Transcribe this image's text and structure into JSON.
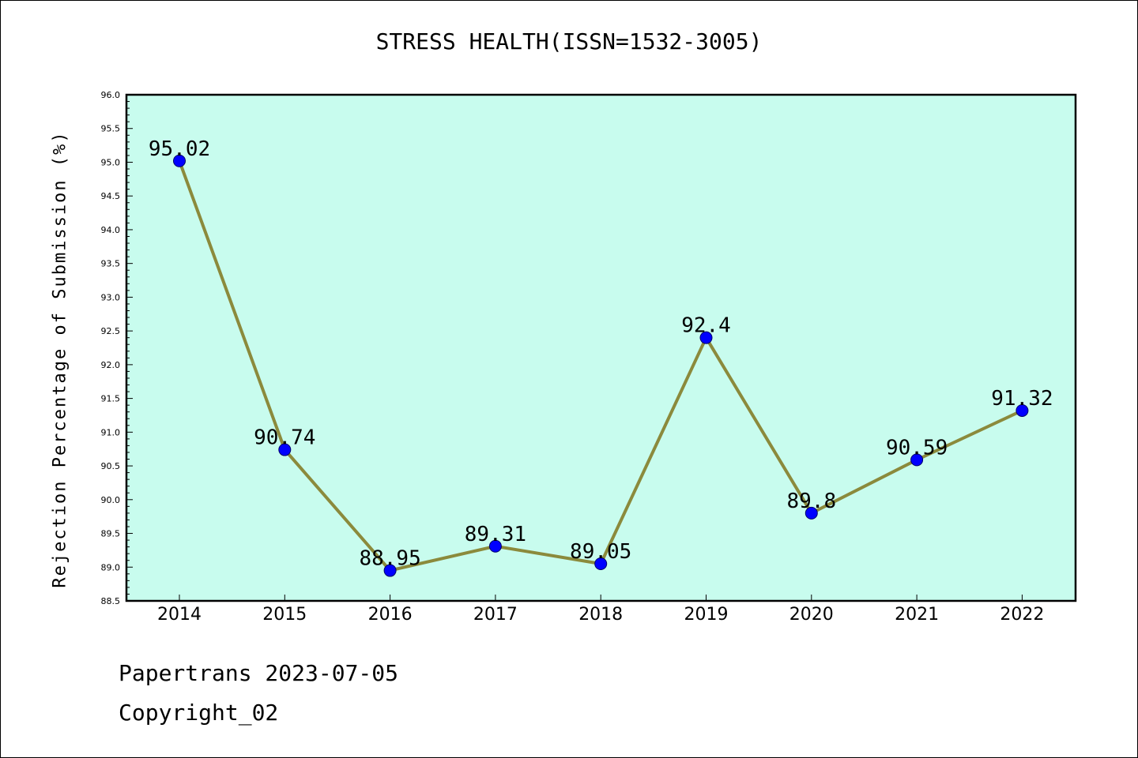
{
  "title": "STRESS HEALTH(ISSN=1532-3005)",
  "footer": {
    "line1": "Papertrans 2023-07-05",
    "line2": "Copyright_02"
  },
  "colors": {
    "plot_background": "#c8fcee",
    "line": "#8b8a3c",
    "marker": "#0000ff"
  },
  "chart_data": {
    "type": "line",
    "title": "STRESS HEALTH(ISSN=1532-3005)",
    "xlabel": "",
    "ylabel": "Rejection Percentage of Submission (%)",
    "categories": [
      "2014",
      "2015",
      "2016",
      "2017",
      "2018",
      "2019",
      "2020",
      "2021",
      "2022"
    ],
    "values": [
      95.02,
      90.74,
      88.95,
      89.31,
      89.05,
      92.4,
      89.8,
      90.59,
      91.32
    ],
    "data_labels": [
      "95.02",
      "90.74",
      "88.95",
      "89.31",
      "89.05",
      "92.4",
      "89.8",
      "90.59",
      "91.32"
    ],
    "ylim": [
      88.5,
      96.0
    ],
    "yticks": [
      "88.5",
      "89.0",
      "89.5",
      "90.0",
      "90.5",
      "91.0",
      "91.5",
      "92.0",
      "92.5",
      "93.0",
      "93.5",
      "94.0",
      "94.5",
      "95.0",
      "95.5",
      "96.0"
    ],
    "grid": false,
    "legend": "none"
  }
}
